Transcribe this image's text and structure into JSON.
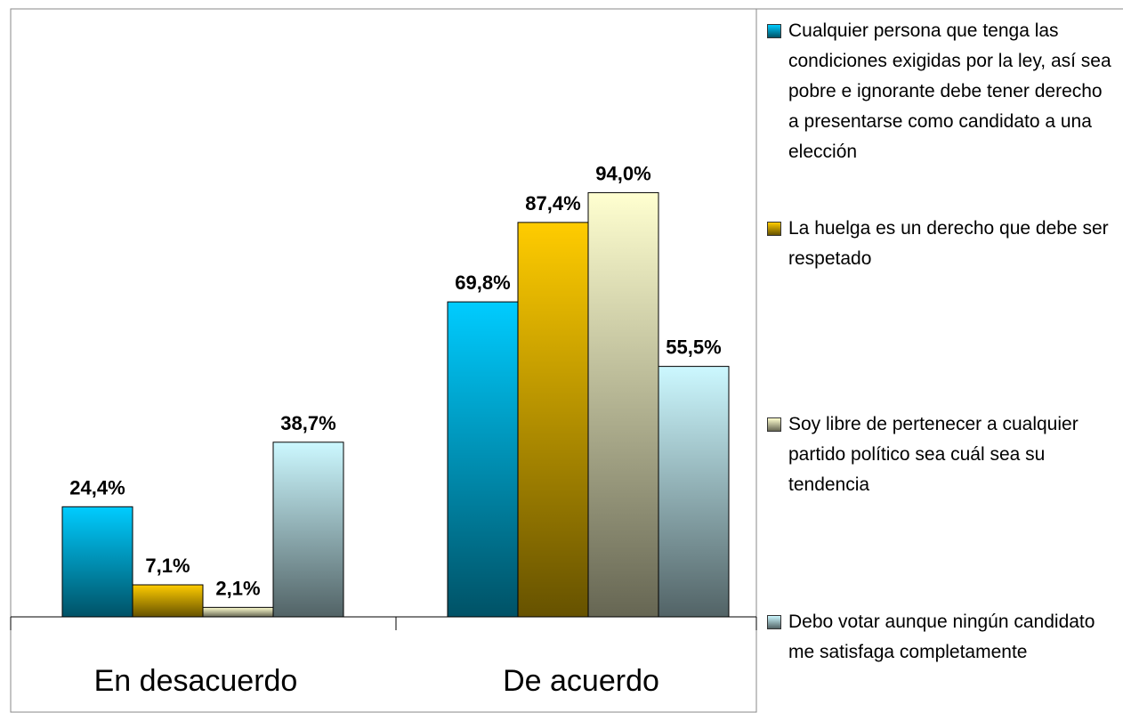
{
  "chart_data": {
    "type": "bar",
    "categories": [
      "En desacuerdo",
      "De acuerdo"
    ],
    "series": [
      {
        "name": "Cualquier persona que tenga las condiciones exigidas por la ley, así sea pobre e ignorante debe tener derecho a presentarse como candidato a una elección",
        "color": "#00ccff",
        "values": [
          24.4,
          69.8
        ],
        "value_labels": [
          "24,4%",
          "69,8%"
        ]
      },
      {
        "name": "La huelga es un derecho que debe ser respetado",
        "color": "#ffcc00",
        "values": [
          7.1,
          87.4
        ],
        "value_labels": [
          "7,1%",
          "87,4%"
        ]
      },
      {
        "name": "Soy libre de pertenecer a cualquier partido político sea cuál sea su tendencia",
        "color": "#ffffd0",
        "values": [
          2.1,
          94.0
        ],
        "value_labels": [
          "2,1%",
          "94,0%"
        ]
      },
      {
        "name": "Debo votar aunque ningún candidato me satisfaga completamente",
        "color": "#ccf8ff",
        "values": [
          38.7,
          55.5
        ],
        "value_labels": [
          "38,7%",
          "55,5%"
        ]
      }
    ],
    "legend": "right"
  }
}
